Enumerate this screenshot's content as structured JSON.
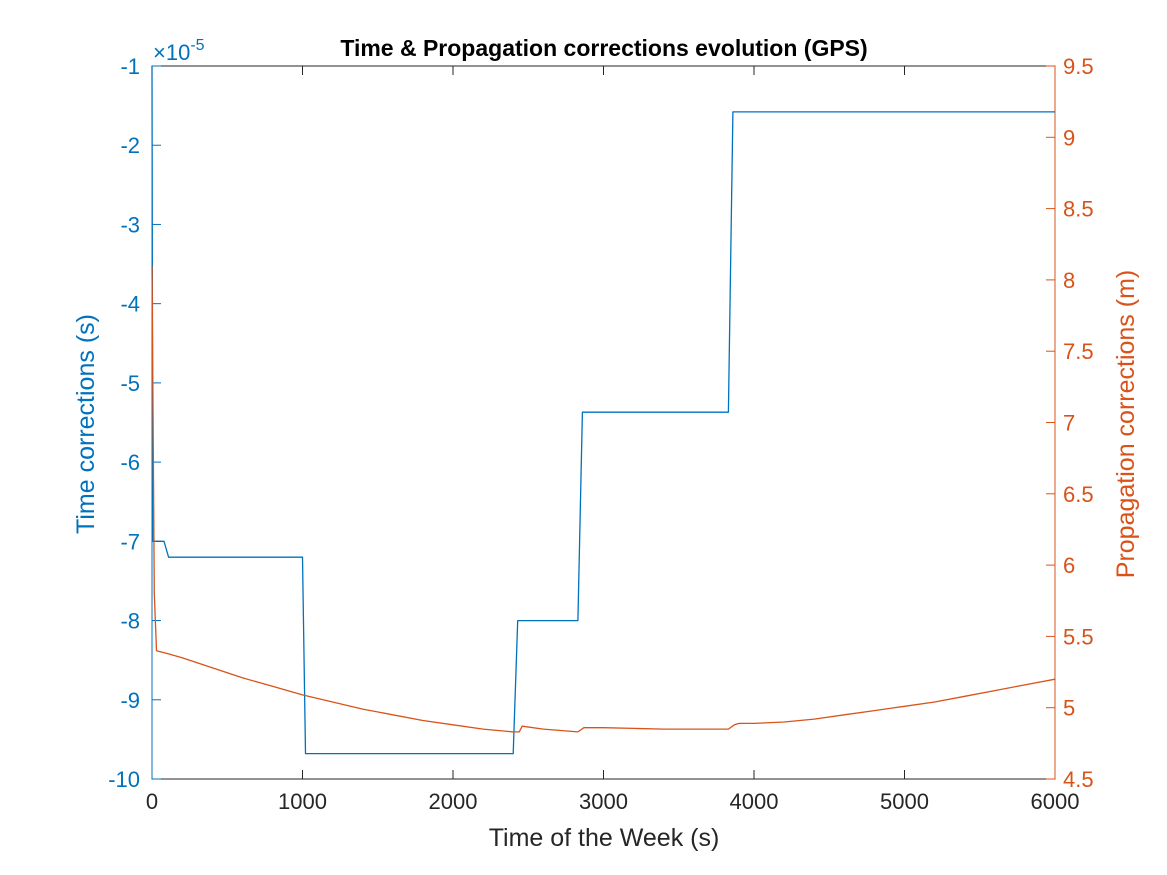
{
  "chart_data": {
    "type": "line",
    "title": "Time & Propagation corrections evolution (GPS)",
    "xlabel": "Time of the Week (s)",
    "ylabel_left": "Time corrections (s)",
    "ylabel_right": "Propagation corrections (m)",
    "left_exponent_base": "×10",
    "left_exponent_power": "-5",
    "xlim": [
      0,
      6000
    ],
    "ylim_left": [
      -10,
      -1
    ],
    "ylim_right": [
      4.5,
      9.5
    ],
    "x_ticks": [
      0,
      1000,
      2000,
      3000,
      4000,
      5000,
      6000
    ],
    "x_tick_labels": [
      "0",
      "1000",
      "2000",
      "3000",
      "4000",
      "5000",
      "6000"
    ],
    "y_left_ticks": [
      -10,
      -9,
      -8,
      -7,
      -6,
      -5,
      -4,
      -3,
      -2,
      -1
    ],
    "y_left_tick_labels": [
      "-10",
      "-9",
      "-8",
      "-7",
      "-6",
      "-5",
      "-4",
      "-3",
      "-2",
      "-1"
    ],
    "y_right_ticks": [
      4.5,
      5,
      5.5,
      6,
      6.5,
      7,
      7.5,
      8,
      8.5,
      9,
      9.5
    ],
    "y_right_tick_labels": [
      "4.5",
      "5",
      "5.5",
      "6",
      "6.5",
      "7",
      "7.5",
      "8",
      "8.5",
      "9",
      "9.5"
    ],
    "grid": false,
    "colors": {
      "left": "#0072BD",
      "right": "#D95319",
      "axis": "#262626"
    },
    "series": [
      {
        "axis": "left",
        "x": [
          0,
          5,
          10,
          80,
          110,
          1000,
          1020,
          2400,
          2430,
          2830,
          2860,
          3830,
          3860,
          6000
        ],
        "y": [
          -1.0,
          -7.0,
          -7.0,
          -7.0,
          -7.2,
          -7.2,
          -9.68,
          -9.68,
          -8.0,
          -8.0,
          -5.37,
          -5.37,
          -1.58,
          -1.58
        ]
      },
      {
        "axis": "right",
        "x": [
          0,
          15,
          30,
          100,
          200,
          400,
          600,
          800,
          1000,
          1200,
          1400,
          1600,
          1800,
          2000,
          2200,
          2400,
          2440,
          2460,
          2600,
          2830,
          2870,
          2900,
          3000,
          3200,
          3400,
          3600,
          3830,
          3870,
          3900,
          4000,
          4200,
          4400,
          4600,
          4800,
          5000,
          5200,
          5400,
          5600,
          5800,
          6000
        ],
        "y": [
          8.1,
          5.8,
          5.4,
          5.38,
          5.35,
          5.28,
          5.21,
          5.15,
          5.09,
          5.04,
          4.99,
          4.95,
          4.91,
          4.88,
          4.85,
          4.83,
          4.83,
          4.87,
          4.85,
          4.83,
          4.86,
          4.86,
          4.86,
          4.855,
          4.85,
          4.85,
          4.85,
          4.88,
          4.89,
          4.89,
          4.9,
          4.92,
          4.95,
          4.98,
          5.01,
          5.04,
          5.08,
          5.12,
          5.16,
          5.2
        ]
      }
    ]
  }
}
